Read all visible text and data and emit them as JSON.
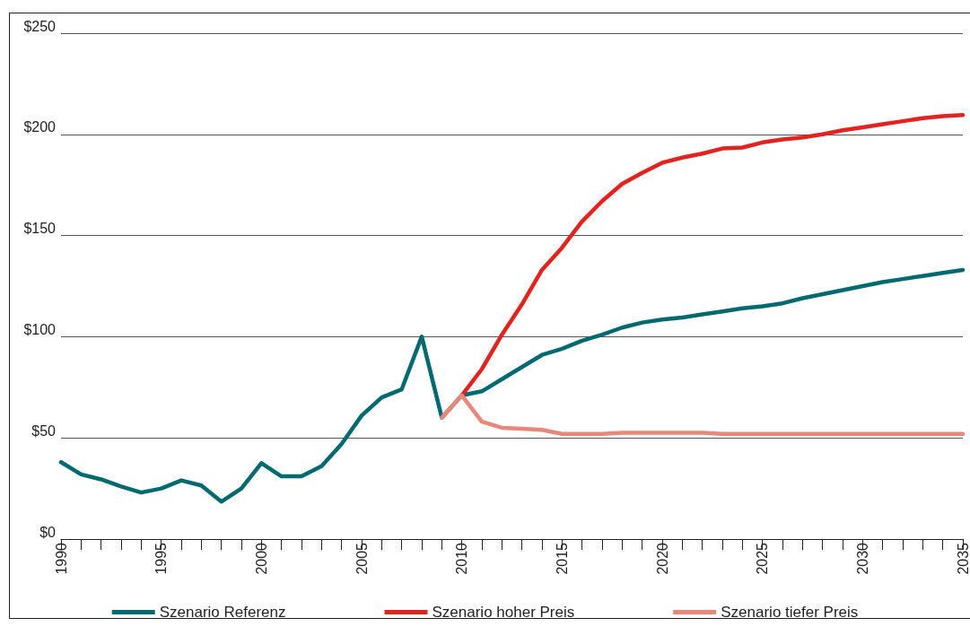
{
  "chart_data": {
    "type": "line",
    "series": [
      {
        "name": "Szenario Referenz",
        "color": "#006a70",
        "x": [
          1990,
          1991,
          1992,
          1993,
          1994,
          1995,
          1996,
          1997,
          1998,
          1999,
          2000,
          2001,
          2002,
          2003,
          2004,
          2005,
          2006,
          2007,
          2008,
          2009,
          2010,
          2011,
          2012,
          2013,
          2014,
          2015,
          2016,
          2017,
          2018,
          2019,
          2020,
          2021,
          2022,
          2023,
          2024,
          2025,
          2026,
          2027,
          2028,
          2029,
          2030,
          2031,
          2032,
          2033,
          2034,
          2035
        ],
        "values": [
          38,
          32,
          29.5,
          26,
          23,
          25,
          29,
          26.5,
          18.5,
          25,
          37.5,
          31,
          31,
          36,
          47,
          61,
          70,
          74,
          100,
          60,
          71,
          73,
          79,
          85,
          91,
          94,
          98,
          101,
          104.5,
          107,
          108.5,
          109.5,
          111,
          112.5,
          114,
          115,
          116.5,
          119,
          121,
          123,
          125,
          127,
          128.5,
          130,
          131.5,
          133
        ]
      },
      {
        "name": "Szenario hoher Preis",
        "color": "#e2231f",
        "x": [
          2010,
          2011,
          2012,
          2013,
          2014,
          2015,
          2016,
          2017,
          2018,
          2019,
          2020,
          2021,
          2022,
          2023,
          2024,
          2025,
          2026,
          2027,
          2028,
          2029,
          2030,
          2031,
          2032,
          2033,
          2034,
          2035
        ],
        "values": [
          71,
          84,
          101,
          116,
          133,
          144,
          157,
          167,
          175.5,
          181,
          186,
          188.5,
          190.5,
          193,
          193.5,
          196,
          197.5,
          198.5,
          200,
          202,
          203.5,
          205,
          206.5,
          208,
          209,
          209.5
        ]
      },
      {
        "name": "Szenario tiefer Preis",
        "color": "#e8877a",
        "x": [
          2009,
          2010,
          2011,
          2012,
          2013,
          2014,
          2015,
          2016,
          2017,
          2018,
          2019,
          2020,
          2021,
          2022,
          2023,
          2024,
          2025,
          2026,
          2027,
          2028,
          2029,
          2030,
          2031,
          2032,
          2033,
          2034,
          2035
        ],
        "values": [
          60,
          71,
          58,
          55,
          54.5,
          54,
          52,
          52,
          52,
          52.5,
          52.5,
          52.5,
          52.5,
          52.5,
          52,
          52,
          52,
          52,
          52,
          52,
          52,
          52,
          52,
          52,
          52,
          52,
          52
        ]
      }
    ],
    "xlim": [
      1990,
      2035
    ],
    "xticks": [
      1990,
      {
        "value": 1991,
        "label": null
      },
      {
        "value": 1992,
        "label": null
      },
      {
        "value": 1993,
        "label": null
      },
      {
        "value": 1994,
        "label": null
      },
      1995,
      {
        "value": 1996,
        "label": null
      },
      {
        "value": 1997,
        "label": null
      },
      {
        "value": 1998,
        "label": null
      },
      {
        "value": 1999,
        "label": null
      },
      2000,
      {
        "value": 2001,
        "label": null
      },
      {
        "value": 2002,
        "label": null
      },
      {
        "value": 2003,
        "label": null
      },
      {
        "value": 2004,
        "label": null
      },
      2005,
      {
        "value": 2006,
        "label": null
      },
      {
        "value": 2007,
        "label": null
      },
      {
        "value": 2008,
        "label": null
      },
      {
        "value": 2009,
        "label": null
      },
      2010,
      {
        "value": 2011,
        "label": null
      },
      {
        "value": 2012,
        "label": null
      },
      {
        "value": 2013,
        "label": null
      },
      {
        "value": 2014,
        "label": null
      },
      2015,
      {
        "value": 2016,
        "label": null
      },
      {
        "value": 2017,
        "label": null
      },
      {
        "value": 2018,
        "label": null
      },
      {
        "value": 2019,
        "label": null
      },
      2020,
      {
        "value": 2021,
        "label": null
      },
      {
        "value": 2022,
        "label": null
      },
      {
        "value": 2023,
        "label": null
      },
      {
        "value": 2024,
        "label": null
      },
      2025,
      {
        "value": 2026,
        "label": null
      },
      {
        "value": 2027,
        "label": null
      },
      {
        "value": 2028,
        "label": null
      },
      {
        "value": 2029,
        "label": null
      },
      2030,
      {
        "value": 2031,
        "label": null
      },
      {
        "value": 2032,
        "label": null
      },
      {
        "value": 2033,
        "label": null
      },
      {
        "value": 2034,
        "label": null
      },
      2035
    ],
    "ylim": [
      0,
      250
    ],
    "yticks": [
      {
        "value": 0,
        "label": "$0"
      },
      {
        "value": 50,
        "label": "$50"
      },
      {
        "value": 100,
        "label": "$100"
      },
      {
        "value": 150,
        "label": "$150"
      },
      {
        "value": 200,
        "label": "$200"
      },
      {
        "value": 250,
        "label": "$250"
      }
    ],
    "grid": "y",
    "legend": "bottom",
    "marker": "none",
    "line_style": "solid"
  }
}
